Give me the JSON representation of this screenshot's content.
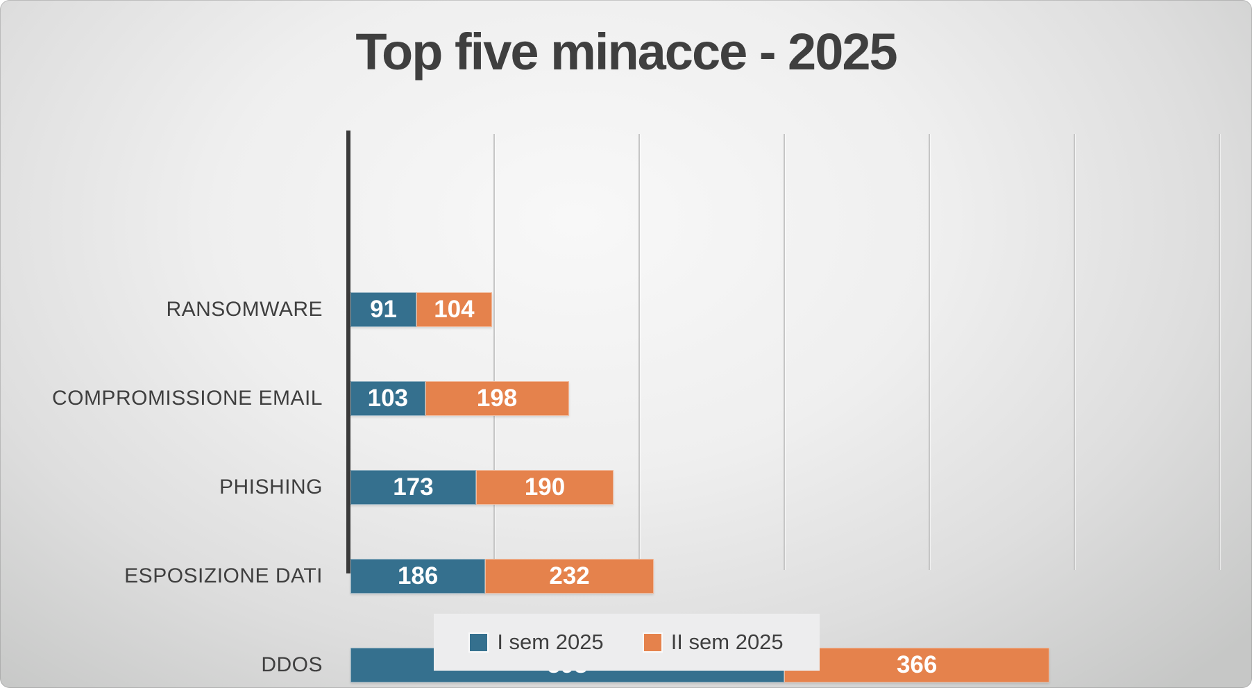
{
  "slide": {
    "title": "Top five minacce - 2025"
  },
  "chart_data": {
    "type": "bar",
    "orientation": "horizontal",
    "stacked": true,
    "title": "Top five minacce - 2025",
    "categories": [
      "RANSOMWARE",
      "COMPROMISSIONE EMAIL",
      "PHISHING",
      "ESPOSIZIONE DATI",
      "DDOS"
    ],
    "series": [
      {
        "name": "I sem 2025",
        "color": "#35708e",
        "values": [
          91,
          103,
          173,
          186,
          598
        ]
      },
      {
        "name": "II sem 2025",
        "color": "#e5824c",
        "values": [
          104,
          198,
          190,
          232,
          366
        ]
      }
    ],
    "totals": [
      195,
      301,
      363,
      418,
      964
    ],
    "xlim": [
      0,
      1240
    ],
    "gridline_values": [
      200,
      400,
      600,
      800,
      1000,
      1200
    ],
    "grid": true,
    "data_labels": true,
    "legend_position": "bottom"
  },
  "colors": {
    "series1": "#35708e",
    "series2": "#e5824c",
    "axis_line": "#3a3a3a",
    "gridline": "#c5c5c5",
    "text": "#3f3f3f",
    "data_label_text": "#ffffff",
    "legend_background": "#ededee"
  }
}
